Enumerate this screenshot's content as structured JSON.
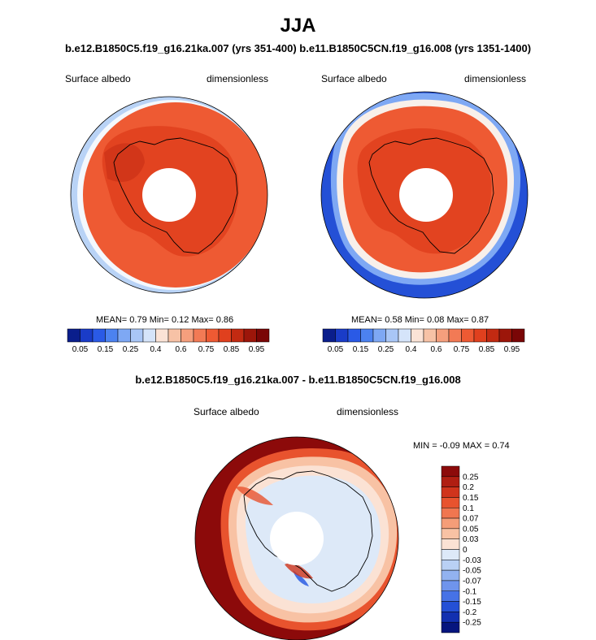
{
  "header": {
    "season": "JJA",
    "subtitle": "b.e12.B1850C5.f19_g16.21ka.007 (yrs 351-400) b.e11.B1850C5CN.f19_g16.008 (yrs 1351-1400)",
    "diff_title": "b.e12.B1850C5.f19_g16.21ka.007 - b.e11.B1850C5CN.f19_g16.008"
  },
  "panels": {
    "left": {
      "label": "Surface albedo",
      "units": "dimensionless",
      "stats": {
        "mean_label": "MEAN=",
        "mean": "0.79",
        "min_label": "Min=",
        "min": "0.12",
        "max_label": "Max=",
        "max": "0.86"
      }
    },
    "right": {
      "label": "Surface albedo",
      "units": "dimensionless",
      "stats": {
        "mean_label": "MEAN=",
        "mean": "0.58",
        "min_label": "Min=",
        "min": "0.08",
        "max_label": "Max=",
        "max": "0.87"
      }
    },
    "diff": {
      "label": "Surface albedo",
      "units": "dimensionless",
      "minmax": "MIN =  -0.09 MAX =   0.74"
    }
  },
  "chart_data": [
    {
      "type": "heatmap",
      "projection": "south-polar-stereographic",
      "title": "Surface albedo",
      "units": "dimensionless",
      "mean": 0.79,
      "min": 0.12,
      "max": 0.86,
      "colorbar": {
        "orientation": "horizontal",
        "levels": [
          0.05,
          0.1,
          0.15,
          0.2,
          0.25,
          0.3,
          0.4,
          0.5,
          0.6,
          0.7,
          0.75,
          0.8,
          0.85,
          0.9,
          0.95
        ],
        "tick_labels": [
          "0.05",
          "0.15",
          "0.25",
          "0.4",
          "0.6",
          "0.75",
          "0.85",
          "0.95"
        ],
        "colors": [
          "#0a1e8c",
          "#1a3cc8",
          "#2a5ae6",
          "#4c82f0",
          "#7ea8f4",
          "#a9c6f6",
          "#d5e4fa",
          "#fbe3d6",
          "#f7c2a6",
          "#f59f7d",
          "#f27a55",
          "#ee5a33",
          "#e0401e",
          "#c22a12",
          "#9c160a",
          "#7a0606"
        ]
      }
    },
    {
      "type": "heatmap",
      "projection": "south-polar-stereographic",
      "title": "Surface albedo",
      "units": "dimensionless",
      "mean": 0.58,
      "min": 0.08,
      "max": 0.87,
      "colorbar": {
        "orientation": "horizontal",
        "levels": [
          0.05,
          0.1,
          0.15,
          0.2,
          0.25,
          0.3,
          0.4,
          0.5,
          0.6,
          0.7,
          0.75,
          0.8,
          0.85,
          0.9,
          0.95
        ],
        "tick_labels": [
          "0.05",
          "0.15",
          "0.25",
          "0.4",
          "0.6",
          "0.75",
          "0.85",
          "0.95"
        ],
        "colors": [
          "#0a1e8c",
          "#1a3cc8",
          "#2a5ae6",
          "#4c82f0",
          "#7ea8f4",
          "#a9c6f6",
          "#d5e4fa",
          "#fbe3d6",
          "#f7c2a6",
          "#f59f7d",
          "#f27a55",
          "#ee5a33",
          "#e0401e",
          "#c22a12",
          "#9c160a",
          "#7a0606"
        ]
      }
    },
    {
      "type": "heatmap",
      "projection": "south-polar-stereographic",
      "title": "Surface albedo",
      "units": "dimensionless",
      "min": -0.09,
      "max": 0.74,
      "colorbar": {
        "orientation": "vertical",
        "levels": [
          0.25,
          0.2,
          0.15,
          0.1,
          0.07,
          0.05,
          0.03,
          0,
          -0.03,
          -0.05,
          -0.07,
          -0.1,
          -0.15,
          -0.2,
          -0.25
        ],
        "tick_labels": [
          "0.25",
          "0.2",
          "0.15",
          "0.1",
          "0.07",
          "0.05",
          "0.03",
          "0",
          "-0.03",
          "-0.05",
          "-0.07",
          "-0.1",
          "-0.15",
          "-0.2",
          "-0.25"
        ],
        "colors": [
          "#8c0a0a",
          "#b01e12",
          "#d0341c",
          "#e8532e",
          "#f07650",
          "#f59d78",
          "#f8c2a4",
          "#fbe2d4",
          "#dde9f8",
          "#b9d0f4",
          "#92b2f0",
          "#6f94ec",
          "#4672e6",
          "#2450d6",
          "#1230b0",
          "#06157e"
        ]
      }
    }
  ]
}
